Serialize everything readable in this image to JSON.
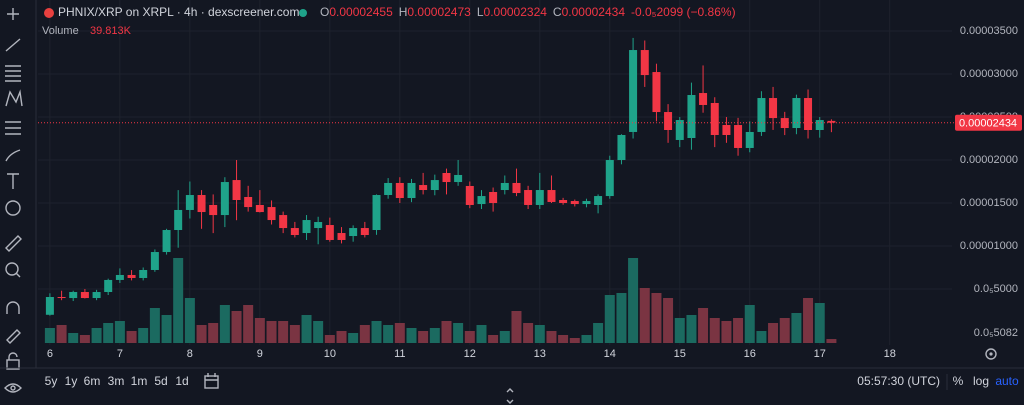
{
  "chart_data": {
    "type": "candlestick",
    "title": "PHNIX/XRP on XRPL · 4h · dexscreener.com",
    "legend": {
      "open_label": "O",
      "open": "0.00002455",
      "high_label": "H",
      "high": "0.00002473",
      "low_label": "L",
      "low": "0.00002324",
      "close_label": "C",
      "close": "0.00002434",
      "change": "-0.0₅2099 (−0.86%)"
    },
    "volume_name": "Volume",
    "volume_value_label": "39.813K",
    "x": [
      6,
      6.167,
      6.333,
      6.5,
      6.667,
      6.833,
      7,
      7.167,
      7.333,
      7.5,
      7.667,
      7.833,
      8,
      8.167,
      8.333,
      8.5,
      8.667,
      8.833,
      9,
      9.167,
      9.333,
      9.5,
      9.667,
      9.833,
      10,
      10.167,
      10.333,
      10.5,
      10.667,
      10.833,
      11,
      11.167,
      11.333,
      11.5,
      11.667,
      11.833,
      12,
      12.167,
      12.333,
      12.5,
      12.667,
      12.833,
      13,
      13.167,
      13.333,
      13.5,
      13.667,
      13.833,
      14,
      14.167,
      14.333,
      14.5,
      14.667,
      14.833,
      15,
      15.167,
      15.333,
      15.5,
      15.667,
      15.833,
      16,
      16.167,
      16.333,
      16.5,
      16.667,
      16.833,
      17,
      17.167
    ],
    "open": [
      2e-06,
      4.07e-06,
      3.95e-06,
      4.65e-06,
      3.95e-06,
      4.65e-06,
      6.05e-06,
      6.63e-06,
      6.28e-06,
      7.21e-06,
      9.3e-06,
      1.186e-05,
      1.419e-05,
      1.593e-05,
      1.477e-05,
      1.36e-05,
      1.767e-05,
      1.57e-05,
      1.477e-05,
      1.453e-05,
      1.36e-05,
      1.209e-05,
      1.151e-05,
      1.209e-05,
      1.244e-05,
      1.151e-05,
      1.116e-05,
      1.209e-05,
      1.186e-05,
      1.593e-05,
      1.733e-05,
      1.558e-05,
      1.709e-05,
      1.651e-05,
      1.849e-05,
      1.744e-05,
      1.698e-05,
      1.488e-05,
      1.628e-05,
      1.651e-05,
      1.733e-05,
      1.651e-05,
      1.477e-05,
      1.651e-05,
      1.535e-05,
      1.523e-05,
      1.488e-05,
      1.477e-05,
      1.581e-05,
      2e-05,
      2.326e-05,
      3.279e-05,
      3.023e-05,
      2.558e-05,
      2.233e-05,
      2.256e-05,
      2.779e-05,
      2.663e-05,
      2.407e-05,
      2.407e-05,
      2.14e-05,
      2.326e-05,
      2.721e-05,
      2.488e-05,
      2.372e-05,
      2.721e-05,
      2.349e-05,
      2.455e-05
    ],
    "high": [
      4.5e-06,
      4.8e-06,
      4.8e-06,
      5e-06,
      4.9e-06,
      6.2e-06,
      7.4e-06,
      7.2e-06,
      7.5e-06,
      9.6e-06,
      1.2e-05,
      1.65e-05,
      1.75e-05,
      1.65e-05,
      1.6e-05,
      1.8e-05,
      2e-05,
      1.7e-05,
      1.65e-05,
      1.53e-05,
      1.4e-05,
      1.28e-05,
      1.36e-05,
      1.34e-05,
      1.33e-05,
      1.22e-05,
      1.24e-05,
      1.28e-05,
      1.6e-05,
      1.79e-05,
      1.8e-05,
      1.78e-05,
      1.85e-05,
      1.83e-05,
      1.9e-05,
      2e-05,
      1.75e-05,
      1.65e-05,
      1.68e-05,
      1.82e-05,
      1.9e-05,
      1.7e-05,
      1.85e-05,
      1.82e-05,
      1.56e-05,
      1.54e-05,
      1.55e-05,
      1.6e-05,
      2.05e-05,
      2.3e-05,
      3.42e-05,
      3.39e-05,
      3.12e-05,
      2.65e-05,
      2.5e-05,
      2.9e-05,
      3.1e-05,
      2.73e-05,
      2.5e-05,
      2.49e-05,
      2.45e-05,
      2.8e-05,
      2.85e-05,
      2.56e-05,
      2.76e-05,
      2.82e-05,
      2.5e-05,
      2.473e-05
    ],
    "low": [
      1.9e-06,
      3.7e-06,
      3.6e-06,
      3.9e-06,
      3.7e-06,
      4.3e-06,
      5.7e-06,
      6e-06,
      6e-06,
      7e-06,
      9e-06,
      9.8e-06,
      1.32e-05,
      1.2e-05,
      1.15e-05,
      1.22e-05,
      1.3e-05,
      1.4e-05,
      1.39e-05,
      1.25e-05,
      1.15e-05,
      1.1e-05,
      1.07e-05,
      1.02e-05,
      1.05e-05,
      1.03e-05,
      1.05e-05,
      1.1e-05,
      1.13e-05,
      1.55e-05,
      1.5e-05,
      1.51e-05,
      1.6e-05,
      1.59e-05,
      1.6e-05,
      1.7e-05,
      1.44e-05,
      1.43e-05,
      1.4e-05,
      1.6e-05,
      1.58e-05,
      1.43e-05,
      1.43e-05,
      1.5e-05,
      1.48e-05,
      1.46e-05,
      1.45e-05,
      1.38e-05,
      1.55e-05,
      1.95e-05,
      2.25e-05,
      2.85e-05,
      2.45e-05,
      2.2e-05,
      2.15e-05,
      2.12e-05,
      2.55e-05,
      2.15e-05,
      2.2e-05,
      2.05e-05,
      2.09e-05,
      2.28e-05,
      2.35e-05,
      2.29e-05,
      2.3e-05,
      2.25e-05,
      2.26e-05,
      2.324e-05
    ],
    "close": [
      4.07e-06,
      3.95e-06,
      4.65e-06,
      3.95e-06,
      4.65e-06,
      6.05e-06,
      6.63e-06,
      6.28e-06,
      7.21e-06,
      9.3e-06,
      1.186e-05,
      1.419e-05,
      1.593e-05,
      1.395e-05,
      1.36e-05,
      1.744e-05,
      1.535e-05,
      1.453e-05,
      1.395e-05,
      1.302e-05,
      1.209e-05,
      1.128e-05,
      1.302e-05,
      1.279e-05,
      1.07e-05,
      1.07e-05,
      1.209e-05,
      1.128e-05,
      1.593e-05,
      1.733e-05,
      1.558e-05,
      1.733e-05,
      1.651e-05,
      1.767e-05,
      1.744e-05,
      1.826e-05,
      1.477e-05,
      1.581e-05,
      1.5e-05,
      1.733e-05,
      1.616e-05,
      1.477e-05,
      1.651e-05,
      1.512e-05,
      1.5e-05,
      1.488e-05,
      1.523e-05,
      1.581e-05,
      2e-05,
      2.291e-05,
      3.279e-05,
      2.988e-05,
      2.558e-05,
      2.349e-05,
      2.465e-05,
      2.756e-05,
      2.64e-05,
      2.291e-05,
      2.291e-05,
      2.14e-05,
      2.326e-05,
      2.721e-05,
      2.488e-05,
      2.372e-05,
      2.721e-05,
      2.349e-05,
      2.465e-05,
      2.434e-05
    ],
    "volume": [
      150000,
      180000,
      100000,
      80000,
      150000,
      200000,
      220000,
      120000,
      150000,
      350000,
      280000,
      850000,
      450000,
      180000,
      200000,
      380000,
      320000,
      380000,
      250000,
      220000,
      220000,
      180000,
      280000,
      220000,
      80000,
      120000,
      100000,
      180000,
      220000,
      180000,
      200000,
      150000,
      120000,
      150000,
      220000,
      200000,
      120000,
      180000,
      80000,
      120000,
      320000,
      200000,
      180000,
      120000,
      80000,
      50000,
      80000,
      200000,
      480000,
      500000,
      850000,
      550000,
      500000,
      450000,
      250000,
      280000,
      350000,
      250000,
      220000,
      250000,
      380000,
      120000,
      200000,
      250000,
      300000,
      450000,
      400000,
      39813
    ],
    "up_color": "#1fa38a",
    "down_color": "#f23645",
    "volume_up_color": "#1b6a60",
    "volume_down_color": "#7a3442",
    "xlim": [
      5.83,
      18.89
    ],
    "xticks": [
      6,
      7,
      8,
      9,
      10,
      11,
      12,
      13,
      14,
      15,
      16,
      17,
      18
    ],
    "ylim": [
      -1.28e-06,
      3.605e-05
    ],
    "yticks": [
      {
        "value": 3.5e-05,
        "label": "0.00003500"
      },
      {
        "value": 3e-05,
        "label": "0.00003000"
      },
      {
        "value": 2.5e-05,
        "label": "0.00002500"
      },
      {
        "value": 2e-05,
        "label": "0.00002000"
      },
      {
        "value": 1.5e-05,
        "label": "0.00001500"
      },
      {
        "value": 1e-05,
        "label": "0.00001000"
      },
      {
        "value": 5e-06,
        "label": "0.0₅5000"
      }
    ],
    "y_axis_bottom_label": "0.0₅5082",
    "volume_lim": [
      0,
      3210000
    ],
    "last_price": 2.434e-05,
    "grid": true,
    "toolbar": {
      "ranges": [
        "5y",
        "1y",
        "6m",
        "3m",
        "1m",
        "5d",
        "1d"
      ],
      "clock": "05:57:30 (UTC)",
      "percent": "%",
      "log": "log",
      "auto": "auto"
    }
  }
}
